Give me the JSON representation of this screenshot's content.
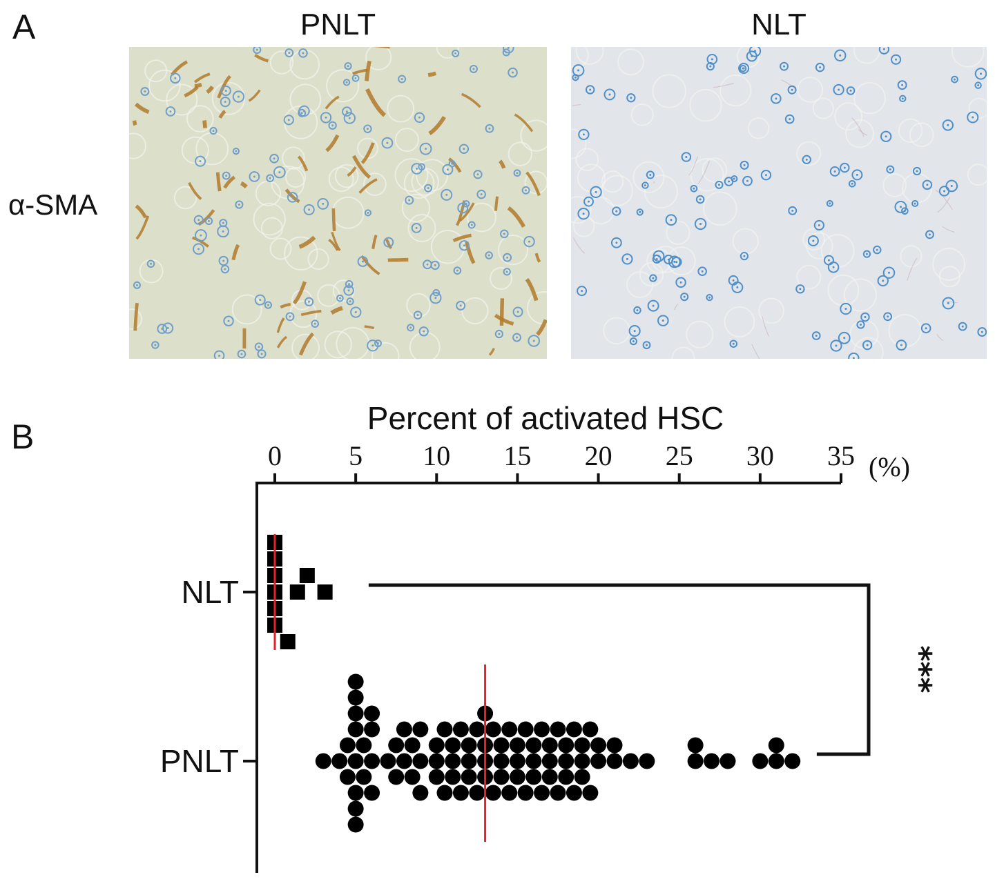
{
  "panel_a": {
    "letter": "A",
    "columns": [
      "PNLT",
      "NLT"
    ],
    "row_label": "α-SMA",
    "images": [
      {
        "name": "PNLT",
        "background": "#dcdfc9",
        "stain": "#b07a2c",
        "nuclei": "#6f9ec9"
      },
      {
        "name": "NLT",
        "background": "#e2e5ea",
        "stain": "#c9a6b3",
        "nuclei": "#4f8fc9"
      }
    ]
  },
  "panel_b": {
    "letter": "B"
  },
  "chart_data": {
    "type": "scatter",
    "title": "",
    "xlabel": "Percent of activated HSC",
    "x_unit": "(%)",
    "xlim": [
      0,
      35
    ],
    "x_ticks": [
      0,
      5,
      10,
      15,
      20,
      25,
      30,
      35
    ],
    "categories": [
      "NLT",
      "PNLT"
    ],
    "significance": "***",
    "mean_line_color": "#e8202a",
    "series": [
      {
        "name": "NLT",
        "marker": "square",
        "values": [
          0,
          0,
          0,
          0,
          0,
          0,
          0.8,
          1.4,
          2.0,
          3.1
        ],
        "mean": 0
      },
      {
        "name": "PNLT",
        "marker": "circle",
        "values": [
          3,
          4,
          4.5,
          4.5,
          5,
          5,
          5,
          5,
          5,
          5,
          5,
          5,
          5.5,
          5.5,
          6,
          6,
          6,
          6,
          7,
          7.5,
          7.5,
          8,
          8,
          8.5,
          8.5,
          9,
          9,
          9,
          10,
          10,
          10,
          10.5,
          10.5,
          11,
          11,
          11,
          11.5,
          11.5,
          12,
          12,
          12,
          12.5,
          12.5,
          13,
          13,
          13,
          13,
          13.5,
          13.5,
          14,
          14,
          14,
          14.5,
          14.5,
          15,
          15,
          15,
          15.5,
          15.5,
          16,
          16,
          16,
          16.5,
          16.5,
          17,
          17,
          17,
          17.5,
          17.5,
          18,
          18,
          18,
          18.5,
          18.5,
          19,
          19,
          19,
          19.5,
          19.5,
          20,
          20,
          21,
          21,
          22,
          23,
          26,
          26,
          27,
          28,
          30,
          31,
          31,
          32
        ],
        "mean": 13
      }
    ]
  }
}
